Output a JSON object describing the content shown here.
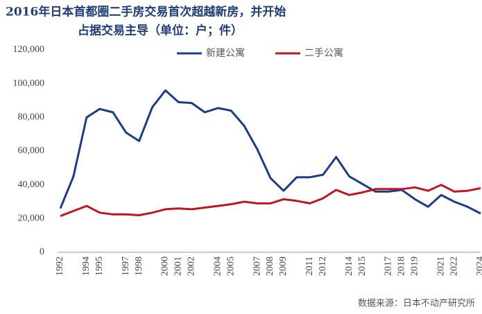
{
  "chart_data": {
    "type": "line",
    "title": [
      "2016年日本首都圈二手房交易首次超越新房，并开始",
      "占据交易主导（单位：户；件）"
    ],
    "source": "数据来源：日本不动产研究所",
    "categories": [
      "1992",
      null,
      "1994",
      "1995",
      null,
      "1997",
      "1998",
      null,
      "2000",
      "2001",
      "2002",
      null,
      "2004",
      "2005",
      null,
      "2007",
      "2008",
      "2009",
      null,
      "2011",
      "2012",
      null,
      "2014",
      "2015",
      null,
      "2017",
      "2018",
      "2019",
      null,
      "2021",
      "2022",
      null,
      "2024"
    ],
    "series": [
      {
        "name": "新建公寓",
        "color": "#1a3c8a",
        "values": [
          26000,
          45000,
          80000,
          85000,
          83000,
          71000,
          66000,
          86000,
          96000,
          89000,
          88500,
          83000,
          85500,
          84000,
          75000,
          61000,
          44000,
          36500,
          44500,
          44500,
          46000,
          56500,
          45000,
          40500,
          36000,
          36000,
          37000,
          31500,
          27000,
          34000,
          30000,
          27000,
          23000
        ]
      },
      {
        "name": "二手公寓",
        "color": "#c0161f",
        "values": [
          21500,
          24500,
          27500,
          23500,
          22500,
          22500,
          22000,
          23500,
          25500,
          26000,
          25500,
          26500,
          27500,
          28500,
          30000,
          29000,
          29000,
          31500,
          30500,
          29000,
          32000,
          37000,
          34000,
          35500,
          37500,
          37500,
          37500,
          38500,
          36500,
          40000,
          36000,
          36500,
          38000
        ]
      }
    ],
    "ylim": [
      0,
      120000
    ],
    "yticks": [
      0,
      {
        "value": 20000,
        "label": "20,000"
      },
      {
        "value": 40000,
        "label": "40,000"
      },
      {
        "value": 60000,
        "label": "60,000"
      },
      {
        "value": 80000,
        "label": "80,000"
      },
      {
        "value": 100000,
        "label": "100,000"
      },
      {
        "value": 120000,
        "label": "120,000"
      }
    ],
    "grid": false,
    "legend": "top"
  }
}
